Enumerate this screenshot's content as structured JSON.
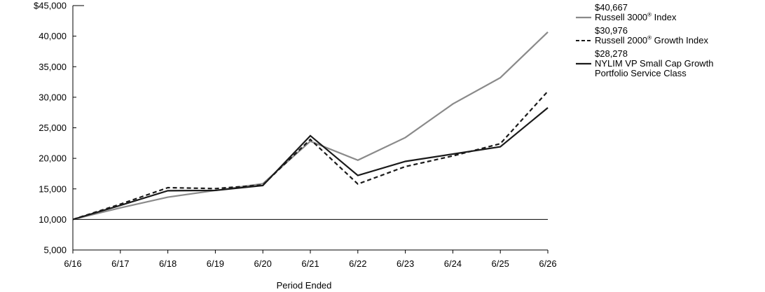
{
  "chart_data": {
    "type": "line",
    "xlabel": "Period Ended",
    "ylabel": "",
    "categories": [
      "6/16",
      "6/17",
      "6/18",
      "6/19",
      "6/20",
      "6/21",
      "6/22",
      "6/23",
      "6/24",
      "6/25",
      "6/26"
    ],
    "ylim": [
      5000,
      45000
    ],
    "yticks": [
      "5,000",
      "10,000",
      "15,000",
      "20,000",
      "25,000",
      "30,000",
      "35,000",
      "40,000",
      "$45,000"
    ],
    "ytick_values": [
      5000,
      10000,
      15000,
      20000,
      25000,
      30000,
      35000,
      40000,
      45000
    ],
    "baseline": 10000,
    "series": [
      {
        "name": "Russell 3000",
        "name_suffix": " Index",
        "end_label": "$40,667",
        "color": "#8a8a8a",
        "dash": "solid",
        "values": [
          10000,
          11900,
          13650,
          14750,
          15850,
          22800,
          19700,
          23400,
          28900,
          33200,
          40667
        ]
      },
      {
        "name": "Russell 2000",
        "name_suffix": " Growth Index",
        "end_label": "$30,976",
        "color": "#1a1a1a",
        "dash": "dashed",
        "values": [
          10000,
          12500,
          15200,
          15050,
          15650,
          23100,
          15800,
          18650,
          20400,
          22400,
          30976
        ]
      },
      {
        "name": "NYLIM VP Small Cap Growth Portfolio Service Class",
        "name_suffix": "",
        "end_label": "$28,278",
        "color": "#1a1a1a",
        "dash": "solid",
        "values": [
          10000,
          12300,
          14700,
          14750,
          15550,
          23700,
          17200,
          19500,
          20700,
          21900,
          28278
        ]
      }
    ],
    "legend": {
      "placement": "right",
      "registered_mark": "®"
    },
    "grid": false
  }
}
